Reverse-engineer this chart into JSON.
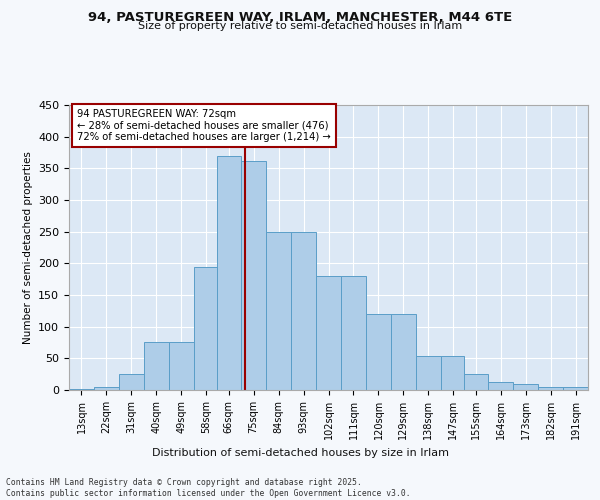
{
  "title1": "94, PASTUREGREEN WAY, IRLAM, MANCHESTER, M44 6TE",
  "title2": "Size of property relative to semi-detached houses in Irlam",
  "xlabel": "Distribution of semi-detached houses by size in Irlam",
  "ylabel": "Number of semi-detached properties",
  "bar_color": "#aecde8",
  "bar_edge_color": "#5a9ec8",
  "bg_color": "#dce8f5",
  "grid_color": "#ffffff",
  "property_size": 72,
  "annotation_title": "94 PASTUREGREEN WAY: 72sqm",
  "annotation_line1": "← 28% of semi-detached houses are smaller (476)",
  "annotation_line2": "72% of semi-detached houses are larger (1,214) →",
  "footer1": "Contains HM Land Registry data © Crown copyright and database right 2025.",
  "footer2": "Contains public sector information licensed under the Open Government Licence v3.0.",
  "bins": [
    13,
    22,
    31,
    40,
    49,
    58,
    66,
    75,
    84,
    93,
    102,
    111,
    120,
    129,
    138,
    147,
    155,
    164,
    173,
    182,
    191
  ],
  "counts": [
    2,
    5,
    25,
    76,
    76,
    195,
    370,
    362,
    250,
    250,
    180,
    180,
    120,
    120,
    53,
    53,
    25,
    12,
    9,
    5,
    4
  ],
  "ylim": [
    0,
    450
  ],
  "yticks": [
    0,
    50,
    100,
    150,
    200,
    250,
    300,
    350,
    400,
    450
  ]
}
